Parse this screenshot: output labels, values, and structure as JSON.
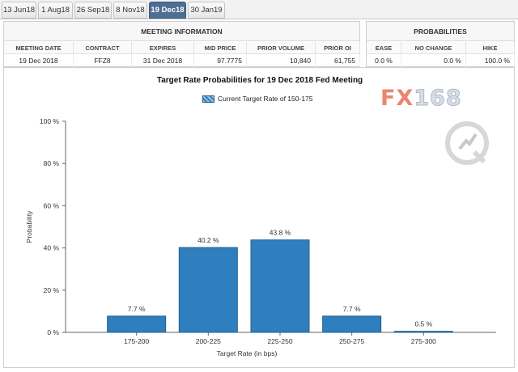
{
  "tabs": [
    {
      "label": "13 Jun18",
      "active": false
    },
    {
      "label": "1 Aug18",
      "active": false
    },
    {
      "label": "26 Sep18",
      "active": false
    },
    {
      "label": "8 Nov18",
      "active": false
    },
    {
      "label": "19 Dec18",
      "active": true
    },
    {
      "label": "30 Jan19",
      "active": false
    }
  ],
  "meeting_info": {
    "title": "MEETING INFORMATION",
    "columns": [
      "MEETING DATE",
      "CONTRACT",
      "EXPIRES",
      "MID PRICE",
      "PRIOR VOLUME",
      "PRIOR OI"
    ],
    "values": [
      "19 Dec 2018",
      "FFZ8",
      "31 Dec 2018",
      "97.7775",
      "10,840",
      "61,755"
    ]
  },
  "probabilities": {
    "title": "PROBABILITIES",
    "columns": [
      "EASE",
      "NO CHANGE",
      "HIKE"
    ],
    "values": [
      "0.0 %",
      "0.0 %",
      "100.0 %"
    ]
  },
  "logo": {
    "text": "FX",
    "number": "168"
  },
  "colors": {
    "bar": "#2f7fbf",
    "bar_stroke": "#1f5f96",
    "active_tab": "#4e6f94",
    "logo": "#e9866f"
  },
  "chart_data": {
    "type": "bar",
    "title": "Target Rate Probabilities for 19 Dec 2018 Fed Meeting",
    "legend": "Current Target Rate of 150-175",
    "legend_position": "top-center",
    "xlabel": "Target Rate (in bps)",
    "ylabel": "Probability",
    "categories": [
      "175-200",
      "200-225",
      "225-250",
      "250-275",
      "275-300"
    ],
    "values": [
      7.7,
      40.2,
      43.8,
      7.7,
      0.5
    ],
    "data_labels": [
      "7.7 %",
      "40.2 %",
      "43.8 %",
      "7.7 %",
      "0.5 %"
    ],
    "yticks": [
      "0 %",
      "20 %",
      "40 %",
      "60 %",
      "80 %",
      "100 %"
    ],
    "ylim": [
      0,
      100
    ],
    "grid": false
  }
}
